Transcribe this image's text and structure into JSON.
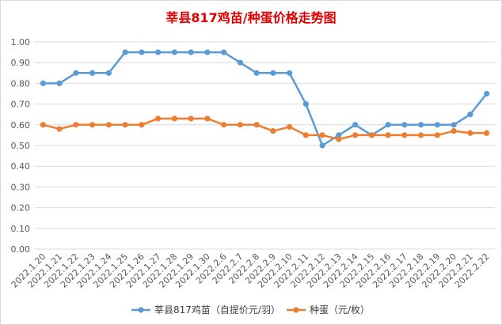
{
  "chart_data": {
    "type": "line",
    "title": "莘县817鸡苗/种蛋价格走势图",
    "categories": [
      "2022.1.20",
      "2022.1.21",
      "2022.1.22",
      "2022.1.23",
      "2022.1.24",
      "2022.1.25",
      "2022.1.26",
      "2022.1.27",
      "2022.1.28",
      "2022.1.29",
      "2022.1.30",
      "2022.2.6",
      "2022.2.7",
      "2022.2.8",
      "2022.2.9",
      "2022.2.10",
      "2022.2.11",
      "2022.2.12",
      "2022.2.13",
      "2022.2.14",
      "2022.2.15",
      "2022.2.16",
      "2022.2.17",
      "2022.2.18",
      "2022.2.19",
      "2022.2.20",
      "2022.2.21",
      "2022.2.22"
    ],
    "series": [
      {
        "name": "莘县817鸡苗（自提价元/羽）",
        "color": "#5b9bd5",
        "values": [
          0.8,
          0.8,
          0.85,
          0.85,
          0.85,
          0.95,
          0.95,
          0.95,
          0.95,
          0.95,
          0.95,
          0.95,
          0.9,
          0.85,
          0.85,
          0.85,
          0.7,
          0.5,
          0.55,
          0.6,
          0.55,
          0.6,
          0.6,
          0.6,
          0.6,
          0.6,
          0.65,
          0.75
        ]
      },
      {
        "name": "种蛋（元/枚）",
        "color": "#ed7d31",
        "values": [
          0.6,
          0.58,
          0.6,
          0.6,
          0.6,
          0.6,
          0.6,
          0.63,
          0.63,
          0.63,
          0.63,
          0.6,
          0.6,
          0.6,
          0.57,
          0.59,
          0.55,
          0.55,
          0.53,
          0.55,
          0.55,
          0.55,
          0.55,
          0.55,
          0.55,
          0.57,
          0.56,
          0.56
        ]
      }
    ],
    "y_ticks": [
      "0.00",
      "0.10",
      "0.20",
      "0.30",
      "0.40",
      "0.50",
      "0.60",
      "0.70",
      "0.80",
      "0.90",
      "1.00"
    ],
    "ylim": [
      0,
      1.0
    ],
    "grid": true,
    "legend_position": "bottom"
  }
}
